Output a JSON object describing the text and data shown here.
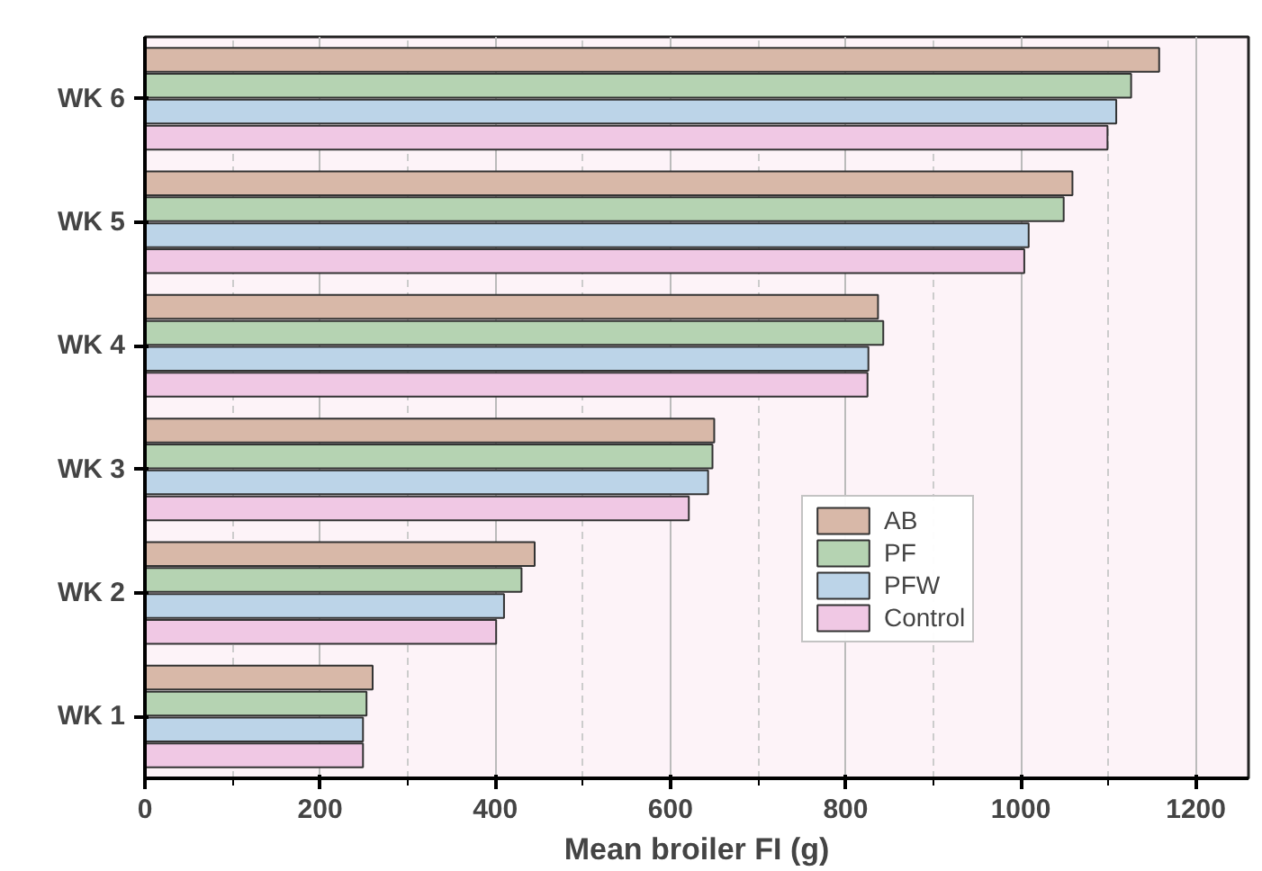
{
  "chart_data": {
    "type": "bar",
    "orientation": "horizontal",
    "xlabel": "Mean broiler FI (g)",
    "categories": [
      "WK 6",
      "WK 5",
      "WK 4",
      "WK 3",
      "WK 2",
      "WK 1"
    ],
    "series": [
      {
        "name": "AB",
        "color": "#d8b8a8",
        "values": [
          1158,
          1059,
          837,
          650,
          445,
          260
        ]
      },
      {
        "name": "PF",
        "color": "#b5d3b2",
        "values": [
          1126,
          1049,
          843,
          648,
          430,
          253
        ]
      },
      {
        "name": "PFW",
        "color": "#bcd4e8",
        "values": [
          1109,
          1009,
          826,
          643,
          410,
          249
        ]
      },
      {
        "name": "Control",
        "color": "#f0c8e4",
        "values": [
          1099,
          1004,
          825,
          621,
          401,
          249
        ]
      }
    ],
    "xlim": [
      0,
      1260
    ],
    "xticks": [
      0,
      200,
      400,
      600,
      800,
      1000,
      1200
    ],
    "grid": "x",
    "legend": "right"
  }
}
